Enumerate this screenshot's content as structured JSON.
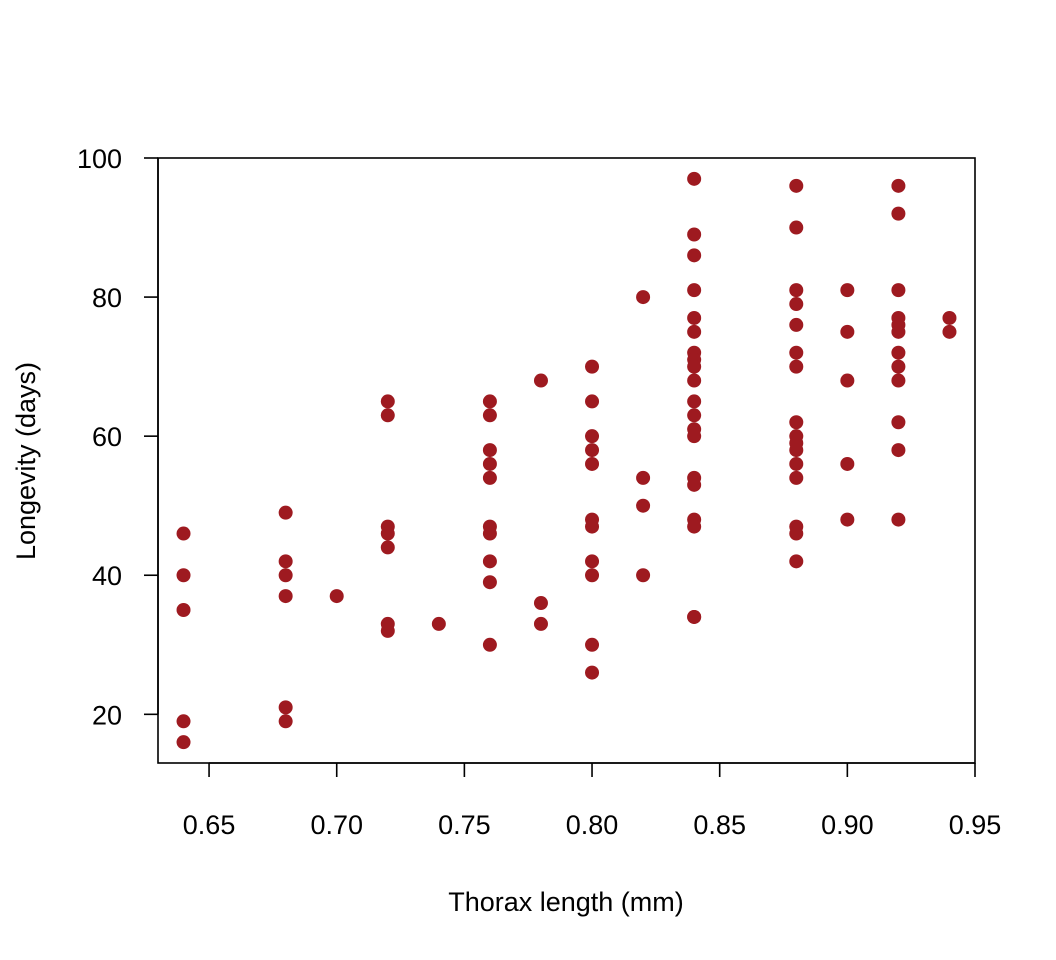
{
  "chart_data": {
    "type": "scatter",
    "title": "",
    "xlabel": "Thorax length (mm)",
    "ylabel": "Longevity (days)",
    "xlim": [
      0.63,
      0.95
    ],
    "ylim": [
      13,
      100
    ],
    "xticks": [
      0.65,
      0.7,
      0.75,
      0.8,
      0.85,
      0.9,
      0.95
    ],
    "xtick_labels": [
      "0.65",
      "0.70",
      "0.75",
      "0.80",
      "0.85",
      "0.90",
      "0.95"
    ],
    "yticks": [
      20,
      40,
      60,
      80,
      100
    ],
    "ytick_labels": [
      "20",
      "40",
      "60",
      "80",
      "100"
    ],
    "grid": false,
    "legend": "none",
    "point_color": "#9E1A20",
    "series": [
      {
        "x": [
          0.64,
          0.64,
          0.64,
          0.64,
          0.64,
          0.68,
          0.68,
          0.68,
          0.68,
          0.68,
          0.68,
          0.7,
          0.72,
          0.72,
          0.72,
          0.72,
          0.72,
          0.72,
          0.72,
          0.74,
          0.76,
          0.76,
          0.76,
          0.76,
          0.76,
          0.76,
          0.76,
          0.76,
          0.76,
          0.76,
          0.78,
          0.78,
          0.78,
          0.8,
          0.8,
          0.8,
          0.8,
          0.8,
          0.8,
          0.8,
          0.8,
          0.8,
          0.8,
          0.8,
          0.82,
          0.82,
          0.82,
          0.82,
          0.84,
          0.84,
          0.84,
          0.84,
          0.84,
          0.84,
          0.84,
          0.84,
          0.84,
          0.84,
          0.84,
          0.84,
          0.84,
          0.84,
          0.84,
          0.84,
          0.84,
          0.84,
          0.84,
          0.84,
          0.88,
          0.88,
          0.88,
          0.88,
          0.88,
          0.88,
          0.88,
          0.88,
          0.88,
          0.88,
          0.88,
          0.88,
          0.88,
          0.88,
          0.88,
          0.88,
          0.9,
          0.9,
          0.9,
          0.9,
          0.9,
          0.92,
          0.92,
          0.92,
          0.92,
          0.92,
          0.92,
          0.92,
          0.92,
          0.92,
          0.92,
          0.92,
          0.92,
          0.94,
          0.94
        ],
        "y": [
          46,
          40,
          35,
          19,
          16,
          49,
          42,
          40,
          37,
          21,
          19,
          37,
          65,
          63,
          47,
          46,
          44,
          33,
          32,
          33,
          65,
          63,
          58,
          56,
          54,
          47,
          46,
          42,
          39,
          30,
          68,
          36,
          33,
          70,
          65,
          60,
          58,
          56,
          48,
          47,
          42,
          40,
          30,
          26,
          80,
          54,
          50,
          40,
          97,
          89,
          86,
          81,
          77,
          75,
          72,
          71,
          70,
          68,
          65,
          63,
          61,
          60,
          54,
          53,
          48,
          47,
          34,
          34,
          96,
          90,
          81,
          79,
          76,
          72,
          70,
          62,
          60,
          59,
          58,
          56,
          54,
          47,
          46,
          42,
          81,
          75,
          68,
          56,
          48,
          96,
          92,
          81,
          77,
          76,
          75,
          72,
          70,
          68,
          62,
          58,
          48,
          77,
          75
        ]
      }
    ]
  }
}
